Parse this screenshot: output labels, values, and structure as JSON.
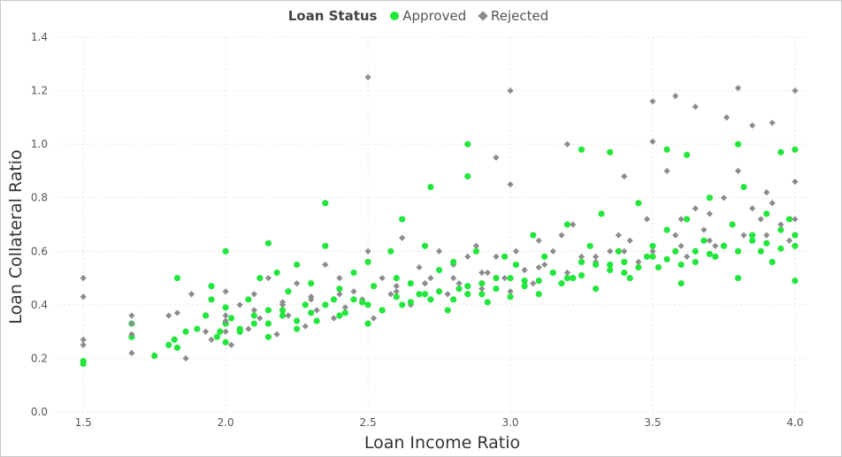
{
  "legend": {
    "title": "Loan Status",
    "items": [
      {
        "label": "Approved",
        "color": "#22e63c",
        "marker": "circle"
      },
      {
        "label": "Rejected",
        "color": "#8c8c8c",
        "marker": "diamond"
      }
    ]
  },
  "chart_data": {
    "type": "scatter",
    "xlabel": "Loan Income Ratio",
    "ylabel": "Loan Collateral Ratio",
    "xlim": [
      1.4,
      4.05
    ],
    "ylim": [
      0,
      1.4
    ],
    "xticks": [
      1.5,
      2.0,
      2.5,
      3.0,
      3.5,
      4.0
    ],
    "yticks": [
      0.0,
      0.2,
      0.4,
      0.6,
      0.8,
      1.0,
      1.2,
      1.4
    ],
    "xtick_labels": [
      "1.5",
      "2.0",
      "2.5",
      "3.0",
      "3.5",
      "4.0"
    ],
    "ytick_labels": [
      "0.0",
      "0.2",
      "0.4",
      "0.6",
      "0.8",
      "1.0",
      "1.2",
      "1.4"
    ],
    "grid": true,
    "legend_position": "top-center",
    "series": [
      {
        "name": "Approved",
        "color": "#22e63c",
        "marker": "circle",
        "x": [
          1.5,
          1.5,
          1.67,
          1.67,
          1.75,
          1.8,
          1.83,
          1.83,
          1.86,
          1.9,
          1.93,
          1.95,
          1.95,
          1.97,
          1.98,
          2.0,
          2.0,
          2.0,
          2.02,
          2.05,
          2.08,
          2.1,
          2.12,
          2.15,
          2.15,
          2.18,
          2.2,
          2.22,
          2.25,
          2.25,
          2.28,
          2.3,
          2.32,
          2.35,
          2.38,
          2.4,
          2.42,
          2.45,
          2.48,
          2.5,
          2.5,
          2.52,
          2.55,
          2.58,
          2.6,
          2.62,
          2.65,
          2.68,
          2.7,
          2.72,
          2.75,
          2.78,
          2.8,
          2.82,
          2.85,
          2.88,
          2.9,
          2.92,
          2.95,
          2.98,
          3.0,
          3.02,
          3.05,
          3.08,
          3.1,
          3.12,
          3.15,
          3.18,
          3.2,
          3.22,
          3.25,
          3.28,
          3.3,
          3.32,
          3.35,
          3.38,
          3.4,
          3.42,
          3.45,
          3.48,
          3.5,
          3.52,
          3.55,
          3.58,
          3.6,
          3.62,
          3.65,
          3.68,
          3.7,
          3.72,
          3.75,
          3.78,
          3.8,
          3.82,
          3.85,
          3.88,
          3.9,
          3.92,
          3.95,
          3.98,
          4.0,
          4.0,
          4.0,
          2.0,
          2.05,
          2.1,
          2.15,
          2.2,
          2.25,
          2.3,
          2.35,
          2.4,
          2.45,
          2.5,
          2.55,
          2.6,
          2.65,
          2.7,
          2.75,
          2.8,
          2.85,
          2.9,
          2.95,
          3.0,
          3.05,
          3.1,
          3.15,
          3.2,
          3.25,
          3.3,
          3.35,
          3.4,
          3.45,
          3.5,
          3.55,
          3.6,
          3.65,
          3.7,
          3.75,
          3.8,
          3.85,
          3.9,
          3.95,
          4.0,
          2.85,
          2.85,
          3.25,
          3.35,
          3.55,
          3.62,
          3.8,
          3.95,
          2.72,
          2.62,
          2.35,
          2.15,
          1.82
        ],
        "y": [
          0.19,
          0.18,
          0.33,
          0.28,
          0.21,
          0.25,
          0.24,
          0.5,
          0.3,
          0.31,
          0.36,
          0.42,
          0.47,
          0.28,
          0.3,
          0.26,
          0.39,
          0.6,
          0.35,
          0.3,
          0.42,
          0.33,
          0.5,
          0.38,
          0.28,
          0.52,
          0.36,
          0.45,
          0.31,
          0.55,
          0.4,
          0.48,
          0.34,
          0.62,
          0.42,
          0.46,
          0.37,
          0.52,
          0.41,
          0.56,
          0.33,
          0.47,
          0.38,
          0.6,
          0.5,
          0.4,
          0.48,
          0.44,
          0.62,
          0.42,
          0.53,
          0.38,
          0.56,
          0.46,
          0.44,
          0.6,
          0.48,
          0.41,
          0.5,
          0.58,
          0.43,
          0.55,
          0.49,
          0.66,
          0.44,
          0.58,
          0.52,
          0.48,
          0.7,
          0.5,
          0.56,
          0.62,
          0.46,
          0.74,
          0.55,
          0.6,
          0.52,
          0.5,
          0.78,
          0.58,
          0.62,
          0.54,
          0.68,
          0.6,
          0.48,
          0.72,
          0.56,
          0.64,
          0.8,
          0.58,
          0.62,
          0.7,
          0.5,
          0.84,
          0.66,
          0.6,
          0.74,
          0.56,
          0.68,
          0.72,
          0.98,
          0.62,
          0.49,
          0.33,
          0.31,
          0.36,
          0.33,
          0.38,
          0.34,
          0.37,
          0.4,
          0.36,
          0.42,
          0.4,
          0.38,
          0.43,
          0.41,
          0.44,
          0.45,
          0.42,
          0.47,
          0.44,
          0.46,
          0.5,
          0.47,
          0.49,
          0.52,
          0.5,
          0.51,
          0.55,
          0.53,
          0.56,
          0.54,
          0.58,
          0.57,
          0.55,
          0.6,
          0.59,
          0.62,
          0.6,
          0.64,
          0.63,
          0.61,
          0.66,
          1.0,
          0.88,
          0.98,
          0.97,
          0.98,
          0.96,
          1.0,
          0.97,
          0.84,
          0.72,
          0.78,
          0.63,
          0.27
        ],
        "approx_total_points": 1600
      },
      {
        "name": "Rejected",
        "color": "#8c8c8c",
        "marker": "diamond",
        "x": [
          1.5,
          1.5,
          1.5,
          1.5,
          1.67,
          1.67,
          1.67,
          1.67,
          1.8,
          1.83,
          1.86,
          1.88,
          1.93,
          1.95,
          2.0,
          2.0,
          2.0,
          2.02,
          2.05,
          2.08,
          2.1,
          2.12,
          2.15,
          2.18,
          2.2,
          2.22,
          2.25,
          2.28,
          2.3,
          2.32,
          2.35,
          2.38,
          2.4,
          2.42,
          2.45,
          2.48,
          2.5,
          2.5,
          2.52,
          2.55,
          2.58,
          2.6,
          2.62,
          2.65,
          2.68,
          2.7,
          2.72,
          2.75,
          2.78,
          2.8,
          2.82,
          2.85,
          2.88,
          2.9,
          2.92,
          2.95,
          2.98,
          3.0,
          3.0,
          3.02,
          3.05,
          3.08,
          3.1,
          3.12,
          3.15,
          3.18,
          3.2,
          3.22,
          3.25,
          3.28,
          3.3,
          3.32,
          3.35,
          3.38,
          3.4,
          3.42,
          3.45,
          3.48,
          3.5,
          3.5,
          3.55,
          3.58,
          3.6,
          3.62,
          3.65,
          3.68,
          3.7,
          3.72,
          3.75,
          3.78,
          3.8,
          3.82,
          3.85,
          3.88,
          3.9,
          3.92,
          3.95,
          3.98,
          4.0,
          4.0,
          4.0,
          3.5,
          3.58,
          3.65,
          3.76,
          3.8,
          3.85,
          3.92,
          2.95,
          3.0,
          3.2,
          2.5,
          2.0,
          2.1,
          2.2,
          2.3,
          2.4,
          2.6,
          2.7,
          2.8,
          2.9,
          3.1,
          3.3,
          3.4,
          3.6,
          3.7,
          3.9
        ],
        "y": [
          0.5,
          0.43,
          0.27,
          0.25,
          0.36,
          0.33,
          0.29,
          0.22,
          0.36,
          0.37,
          0.2,
          0.44,
          0.3,
          0.27,
          0.45,
          0.3,
          0.36,
          0.25,
          0.4,
          0.31,
          0.44,
          0.35,
          0.5,
          0.29,
          0.4,
          0.36,
          0.48,
          0.32,
          0.43,
          0.38,
          0.55,
          0.35,
          0.5,
          0.39,
          0.45,
          0.42,
          0.6,
          0.4,
          0.35,
          0.5,
          0.44,
          0.45,
          0.65,
          0.4,
          0.54,
          0.48,
          0.5,
          0.6,
          0.44,
          0.55,
          0.48,
          0.58,
          0.62,
          0.46,
          0.52,
          0.58,
          0.5,
          0.85,
          0.45,
          0.6,
          0.53,
          0.48,
          0.64,
          0.55,
          0.6,
          0.66,
          0.52,
          0.7,
          0.58,
          0.62,
          0.56,
          0.74,
          0.6,
          0.66,
          0.88,
          0.64,
          0.56,
          0.72,
          1.01,
          0.6,
          0.9,
          0.66,
          0.72,
          0.58,
          0.76,
          0.68,
          0.74,
          0.62,
          0.8,
          0.7,
          0.9,
          0.66,
          0.76,
          0.72,
          0.82,
          0.78,
          0.7,
          0.64,
          0.86,
          0.72,
          1.2,
          1.16,
          1.18,
          1.14,
          1.1,
          1.21,
          1.07,
          1.08,
          0.95,
          1.2,
          1.0,
          1.25,
          0.34,
          0.38,
          0.41,
          0.42,
          0.44,
          0.47,
          0.48,
          0.5,
          0.52,
          0.54,
          0.58,
          0.6,
          0.62,
          0.64,
          0.66
        ],
        "approx_total_points": 1600
      }
    ]
  }
}
